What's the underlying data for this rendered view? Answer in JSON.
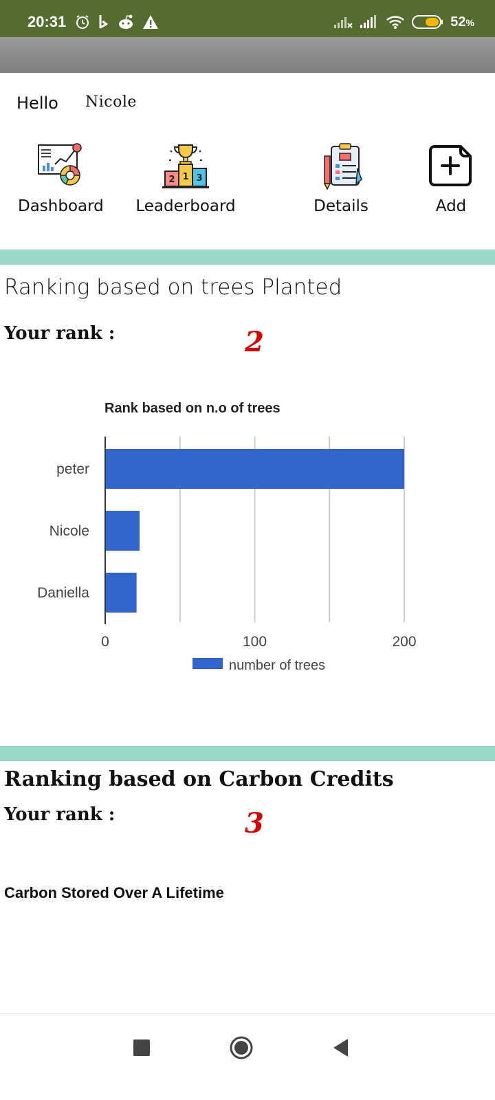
{
  "status_bar": {
    "time": "20:31",
    "battery_percent": "52",
    "battery_unit": "%",
    "icons_left": [
      "alarm-icon",
      "b-app-icon",
      "reddit-icon",
      "warning-icon"
    ],
    "icons_right": [
      "signal-x-icon",
      "signal-icon",
      "wifi-icon",
      "battery-icon"
    ],
    "bar_color": "#556b2f"
  },
  "greeting": {
    "hello": "Hello",
    "name": "Nicole"
  },
  "nav": {
    "items": [
      {
        "label": "Dashboard",
        "icon": "dashboard-icon"
      },
      {
        "label": "Leaderboard",
        "icon": "podium-trophy-icon"
      },
      {
        "label": "Details",
        "icon": "clipboard-icon"
      },
      {
        "label": "Add",
        "icon": "add-note-icon"
      }
    ]
  },
  "trees_section": {
    "title": "Ranking based on trees Planted",
    "rank_label": "Your rank :",
    "rank_value": "2"
  },
  "carbon_section": {
    "title": "Ranking based on Carbon Credits",
    "rank_label": "Your rank :",
    "rank_value": "3",
    "chart_title": "Carbon Stored Over A Lifetime"
  },
  "chart_data": {
    "type": "bar",
    "orientation": "horizontal",
    "title": "Rank based on n.o of trees",
    "categories": [
      "peter",
      "Nicole",
      "Daniella"
    ],
    "series": [
      {
        "name": "number of trees",
        "values": [
          200,
          23,
          21
        ],
        "color": "#3366cc"
      }
    ],
    "xlim": [
      0,
      200
    ],
    "x_ticks": [
      0,
      100,
      200
    ],
    "grid": true,
    "legend": "bottom"
  },
  "colors": {
    "divider": "#99d8c7",
    "rank_value": "#d40000",
    "bar": "#3366cc"
  }
}
